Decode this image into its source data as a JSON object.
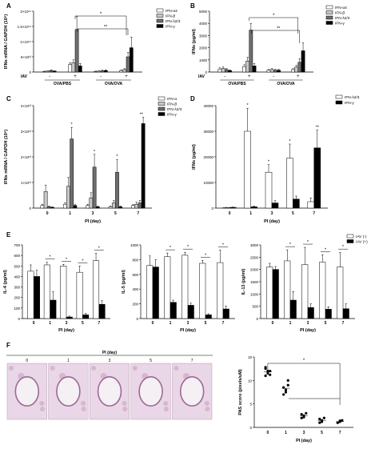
{
  "panel_letters": [
    "A",
    "B",
    "C",
    "D",
    "E",
    "F"
  ],
  "colors": {
    "ifn_a4": "#ffffff",
    "ifn_b": "#c8c8c8",
    "ifn_l23": "#6e6e6e",
    "ifn_g": "#000000",
    "iav_neg": "#ffffff",
    "iav_pos": "#000000"
  },
  "chart_data": [
    {
      "id": "A",
      "type": "bar",
      "ylabel": "IFNs mRNA / GAPDH (10⁸)",
      "ytick_labels": [
        "0",
        "5×10¹³",
        "1×10¹⁴",
        "1.5×10¹⁴",
        "2×10¹⁴"
      ],
      "ylim": [
        0,
        2.0
      ],
      "iav_label": "IAV",
      "iav_signs": [
        "-",
        "+",
        "-",
        "+"
      ],
      "categories": [
        "OVA/PBS",
        "OVA/PBS",
        "OVA/OVA",
        "OVA/OVA"
      ],
      "group_labels": [
        "OVA/PBS",
        "OVA/OVA"
      ],
      "legend": [
        "IFN-α4",
        "IFN-β",
        "IFN-λ2/3",
        "IFN-γ"
      ],
      "legend_position": "top-right",
      "series": [
        {
          "name": "IFN-α4",
          "values": [
            0.02,
            0.25,
            0.02,
            0.05
          ],
          "errors": [
            0.01,
            0.06,
            0.01,
            0.02
          ]
        },
        {
          "name": "IFN-β",
          "values": [
            0.03,
            0.3,
            0.03,
            0.08
          ],
          "errors": [
            0.01,
            0.1,
            0.01,
            0.03
          ]
        },
        {
          "name": "IFN-λ2/3",
          "values": [
            0.05,
            1.4,
            0.04,
            0.5
          ],
          "errors": [
            0.02,
            0.42,
            0.02,
            0.15
          ]
        },
        {
          "name": "IFN-γ",
          "values": [
            0.03,
            0.2,
            0.05,
            0.8
          ],
          "errors": [
            0.01,
            0.08,
            0.02,
            0.35
          ]
        }
      ],
      "significance": [
        "*",
        "**"
      ]
    },
    {
      "id": "B",
      "type": "bar",
      "ylabel": "IFNs (pg/ml)",
      "ytick_labels": [
        "0",
        "1000",
        "2000",
        "3000",
        "4000",
        "5000"
      ],
      "ylim": [
        0,
        5000
      ],
      "iav_label": "IAV",
      "iav_signs": [
        "-",
        "+",
        "-",
        "+"
      ],
      "group_labels": [
        "OVA/PBS",
        "OVA/OVA"
      ],
      "legend": [
        "IFN-α4",
        "IFN-β",
        "IFN-λ2/3",
        "IFN-γ"
      ],
      "legend_position": "top-right",
      "series": [
        {
          "name": "IFN-α4",
          "values": [
            250,
            450,
            150,
            200
          ],
          "errors": [
            100,
            150,
            60,
            80
          ]
        },
        {
          "name": "IFN-β",
          "values": [
            300,
            900,
            200,
            400
          ],
          "errors": [
            120,
            300,
            80,
            150
          ]
        },
        {
          "name": "IFN-λ2/3",
          "values": [
            200,
            3450,
            150,
            800
          ],
          "errors": [
            90,
            550,
            70,
            300
          ]
        },
        {
          "name": "IFN-γ",
          "values": [
            120,
            500,
            150,
            1750
          ],
          "errors": [
            60,
            200,
            70,
            650
          ]
        }
      ],
      "significance": [
        "*",
        "**"
      ]
    },
    {
      "id": "C",
      "type": "bar",
      "ylabel": "IFNs mRNA / GAPDH (10⁸)",
      "ytick_labels": [
        "0",
        "1×10¹³",
        "2×10¹³",
        "3×10¹³",
        "4×10¹³"
      ],
      "ylim": [
        0,
        4.0
      ],
      "xlabel": "PI (day)",
      "categories": [
        "0",
        "1",
        "3",
        "5",
        "7"
      ],
      "legend": [
        "IFN-α",
        "IFN-β",
        "IFN-λ2/3",
        "IFN-γ"
      ],
      "legend_position": "top-right",
      "series": [
        {
          "name": "IFN-α",
          "values": [
            0.1,
            0.15,
            0.1,
            0.05,
            0.1
          ],
          "errors": [
            0.05,
            0.06,
            0.05,
            0.03,
            0.04
          ]
        },
        {
          "name": "IFN-β",
          "values": [
            0.65,
            0.85,
            0.4,
            0.2,
            0.15
          ],
          "errors": [
            0.25,
            0.35,
            0.2,
            0.1,
            0.08
          ]
        },
        {
          "name": "IFN-λ2/3",
          "values": [
            0.05,
            2.7,
            1.6,
            1.4,
            0.2
          ],
          "errors": [
            0.03,
            0.45,
            0.5,
            0.5,
            0.1
          ]
        },
        {
          "name": "IFN-γ",
          "values": [
            0.03,
            0.1,
            0.05,
            0.05,
            3.3
          ],
          "errors": [
            0.02,
            0.05,
            0.03,
            0.03,
            0.25
          ]
        }
      ],
      "significance": [
        "*",
        "*",
        "*",
        "**"
      ]
    },
    {
      "id": "D",
      "type": "bar",
      "ylabel": "IFNs (pg/ml)",
      "ytick_labels": [
        "0",
        "10000",
        "20000",
        "30000",
        "40000"
      ],
      "ylim": [
        0,
        40000
      ],
      "xlabel": "PI (day)",
      "categories": [
        "0",
        "1",
        "3",
        "5",
        "7"
      ],
      "legend": [
        "IFN-λ2/3",
        "IFN-γ"
      ],
      "legend_position": "top-right",
      "series": [
        {
          "name": "IFN-λ2/3",
          "values": [
            200,
            30000,
            14000,
            19500,
            2500
          ],
          "errors": [
            100,
            9000,
            3000,
            5500,
            1500
          ]
        },
        {
          "name": "IFN-γ",
          "values": [
            300,
            500,
            2000,
            3500,
            23500
          ],
          "errors": [
            100,
            300,
            900,
            1200,
            7000
          ]
        }
      ],
      "significance": [
        "*",
        "*",
        "*",
        "**"
      ]
    },
    {
      "id": "E1",
      "type": "bar",
      "ylabel": "IL-4 (pg/ml)",
      "ytick_labels": [
        "0",
        "100",
        "200",
        "300",
        "400",
        "500",
        "600",
        "700"
      ],
      "ylim": [
        0,
        700
      ],
      "xlabel": "PI (day)",
      "categories": [
        "0",
        "1",
        "3",
        "5",
        "7"
      ],
      "legend": [
        "IAV (-)",
        "IAV (+)"
      ],
      "series": [
        {
          "name": "IAV (-)",
          "values": [
            450,
            510,
            500,
            440,
            550
          ],
          "errors": [
            60,
            25,
            15,
            60,
            70
          ]
        },
        {
          "name": "IAV (+)",
          "values": [
            400,
            175,
            15,
            35,
            135
          ],
          "errors": [
            60,
            80,
            8,
            15,
            35
          ]
        }
      ],
      "significance": [
        "*",
        "*",
        "*",
        "*"
      ]
    },
    {
      "id": "E2",
      "type": "bar",
      "ylabel": "IL-5 (pg/ml)",
      "ytick_labels": [
        "0",
        "200",
        "400",
        "600",
        "800",
        "1000"
      ],
      "ylim": [
        0,
        1000
      ],
      "xlabel": "PI (day)",
      "categories": [
        "0",
        "1",
        "3",
        "5",
        "7"
      ],
      "series": [
        {
          "name": "IAV (-)",
          "values": [
            720,
            840,
            860,
            750,
            760
          ],
          "errors": [
            130,
            50,
            40,
            40,
            170
          ]
        },
        {
          "name": "IAV (+)",
          "values": [
            700,
            220,
            180,
            50,
            130
          ],
          "errors": [
            100,
            30,
            30,
            15,
            40
          ]
        }
      ],
      "significance": [
        "*",
        "*",
        "*",
        "*"
      ]
    },
    {
      "id": "E3",
      "type": "bar",
      "ylabel": "IL-13 (pg/ml)",
      "ytick_labels": [
        "0",
        "500",
        "1000",
        "1500",
        "2000",
        "2500",
        "3000"
      ],
      "ylim": [
        0,
        3000
      ],
      "xlabel": "PI (day)",
      "categories": [
        "0",
        "1",
        "3",
        "5",
        "7"
      ],
      "series": [
        {
          "name": "IAV (-)",
          "values": [
            2100,
            2350,
            2200,
            2300,
            2100
          ],
          "errors": [
            150,
            450,
            700,
            300,
            600
          ]
        },
        {
          "name": "IAV (+)",
          "values": [
            2000,
            750,
            450,
            380,
            400
          ],
          "errors": [
            120,
            350,
            150,
            100,
            200
          ]
        }
      ],
      "significance": [
        "*",
        "*",
        "*",
        "*"
      ]
    },
    {
      "id": "F",
      "type": "scatter",
      "ylabel": "PAS score (pixels/uM)",
      "ytick_labels": [
        "0",
        "5",
        "10",
        "15"
      ],
      "ylim": [
        0,
        15
      ],
      "xlabel": "PI (day)",
      "categories": [
        "0",
        "1",
        "3",
        "5",
        "7"
      ],
      "points": [
        [
          11,
          11.5,
          12,
          12.5,
          12,
          11.2,
          12.8
        ],
        [
          7,
          8,
          9,
          8.5,
          7.5,
          10
        ],
        [
          2,
          2.5,
          3,
          2.8,
          2.2
        ],
        [
          1,
          1.5,
          2,
          1.8,
          1.2
        ],
        [
          1,
          1.2,
          1.5,
          1,
          1.4
        ]
      ],
      "significance": [
        "*"
      ]
    }
  ],
  "micro": {
    "title": "PI (day)",
    "days": [
      "0",
      "1",
      "3",
      "5",
      "7"
    ]
  }
}
